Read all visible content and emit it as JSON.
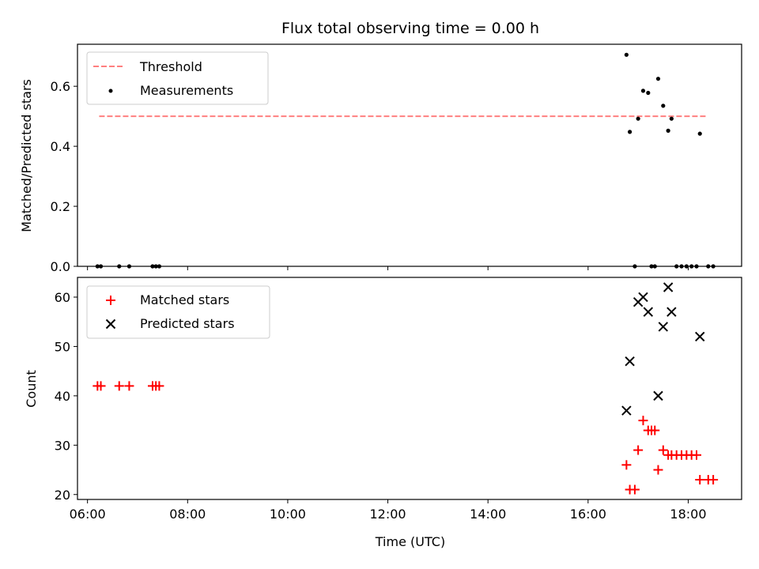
{
  "title": "Flux total observing time = 0.00 h",
  "colors": {
    "threshold": "#ff7f7f",
    "measurement": "#000000",
    "matched": "#ff0000",
    "predicted": "#000000"
  },
  "chart_data": [
    {
      "type": "scatter",
      "title": "Flux total observing time = 0.00 h",
      "xlabel": "",
      "ylabel": "Matched/Predicted stars",
      "xlim": [
        "05:48",
        "19:04"
      ],
      "ylim": [
        0,
        0.74
      ],
      "xticks": [
        "06:00",
        "08:00",
        "10:00",
        "12:00",
        "14:00",
        "16:00",
        "18:00"
      ],
      "yticks": [
        "0.0",
        "0.2",
        "0.4",
        "0.6"
      ],
      "legend": {
        "position": "top-left",
        "entries": [
          "Threshold",
          "Measurements"
        ]
      },
      "series": [
        {
          "name": "Threshold",
          "kind": "dashed-line",
          "x": [
            "06:14",
            "18:22"
          ],
          "y": [
            0.5,
            0.5
          ]
        },
        {
          "name": "Measurements",
          "kind": "dots",
          "x": [
            "06:12",
            "06:16",
            "06:38",
            "06:50",
            "07:18",
            "07:22",
            "07:26",
            "16:46",
            "16:50",
            "16:56",
            "17:00",
            "17:06",
            "17:12",
            "17:16",
            "17:20",
            "17:24",
            "17:30",
            "17:36",
            "17:40",
            "17:46",
            "17:52",
            "17:58",
            "18:04",
            "18:10",
            "18:14",
            "18:24",
            "18:30"
          ],
          "y": [
            0,
            0,
            0,
            0,
            0,
            0,
            0,
            0.705,
            0.448,
            0,
            0.492,
            0.585,
            0.578,
            0,
            0,
            0.625,
            0.535,
            0.452,
            0.492,
            0,
            0,
            0,
            0,
            0,
            0.442,
            0,
            0
          ]
        }
      ]
    },
    {
      "type": "scatter",
      "title": "",
      "xlabel": "Time (UTC)",
      "ylabel": "Count",
      "xlim": [
        "05:48",
        "19:04"
      ],
      "ylim": [
        19,
        64
      ],
      "xticks": [
        "06:00",
        "08:00",
        "10:00",
        "12:00",
        "14:00",
        "16:00",
        "18:00"
      ],
      "yticks": [
        "20",
        "30",
        "40",
        "50",
        "60"
      ],
      "legend": {
        "position": "top-left",
        "entries": [
          "Matched stars",
          "Predicted stars"
        ]
      },
      "series": [
        {
          "name": "Matched stars",
          "kind": "plus",
          "x": [
            "06:12",
            "06:16",
            "06:38",
            "06:50",
            "07:18",
            "07:22",
            "07:26",
            "16:46",
            "16:50",
            "16:56",
            "17:00",
            "17:06",
            "17:12",
            "17:16",
            "17:20",
            "17:24",
            "17:30",
            "17:36",
            "17:40",
            "17:46",
            "17:52",
            "17:58",
            "18:04",
            "18:10",
            "18:14",
            "18:24",
            "18:30"
          ],
          "y": [
            42,
            42,
            42,
            42,
            42,
            42,
            42,
            26,
            21,
            21,
            29,
            35,
            33,
            33,
            33,
            25,
            29,
            28,
            28,
            28,
            28,
            28,
            28,
            28,
            23,
            23,
            23
          ]
        },
        {
          "name": "Predicted stars",
          "kind": "x",
          "x": [
            "16:46",
            "16:50",
            "17:00",
            "17:06",
            "17:12",
            "17:24",
            "17:30",
            "17:36",
            "17:40",
            "18:14"
          ],
          "y": [
            37,
            47,
            59,
            60,
            57,
            40,
            54,
            62,
            57,
            52
          ]
        }
      ]
    }
  ]
}
